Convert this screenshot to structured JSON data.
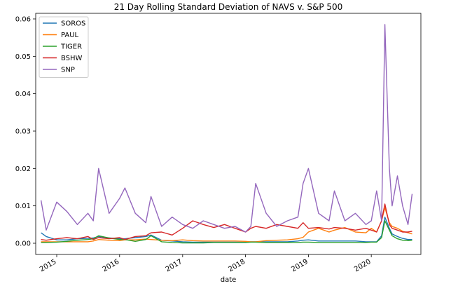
{
  "chart_data": {
    "type": "line",
    "title": "21 Day Rolling Standard Deviation of NAVS v. S&P 500",
    "xlabel": "date",
    "ylabel": "",
    "xlim": [
      "2014-09-01",
      "2020-10-15"
    ],
    "ylim": [
      -0.003,
      0.0615
    ],
    "x_ticks": [
      "2015",
      "2016",
      "2017",
      "2018",
      "2019",
      "2020"
    ],
    "y_ticks": [
      "0.00",
      "0.01",
      "0.02",
      "0.03",
      "0.04",
      "0.05",
      "0.06"
    ],
    "y_tick_values": [
      0,
      0.01,
      0.02,
      0.03,
      0.04,
      0.05,
      0.06
    ],
    "grid": false,
    "legend": {
      "position": "upper-left"
    },
    "x": [
      "2014-10-02",
      "2014-11-01",
      "2015-01-01",
      "2015-03-01",
      "2015-05-01",
      "2015-07-01",
      "2015-08-01",
      "2015-09-01",
      "2015-11-01",
      "2016-01-01",
      "2016-02-01",
      "2016-04-01",
      "2016-06-01",
      "2016-07-01",
      "2016-09-01",
      "2016-11-01",
      "2017-01-01",
      "2017-03-01",
      "2017-05-01",
      "2017-07-01",
      "2017-09-01",
      "2017-11-01",
      "2018-01-01",
      "2018-02-01",
      "2018-03-01",
      "2018-05-01",
      "2018-07-01",
      "2018-09-01",
      "2018-11-01",
      "2018-12-01",
      "2019-01-01",
      "2019-03-01",
      "2019-05-01",
      "2019-06-01",
      "2019-08-01",
      "2019-10-01",
      "2019-12-01",
      "2020-01-01",
      "2020-02-01",
      "2020-03-01",
      "2020-03-20",
      "2020-04-15",
      "2020-05-01",
      "2020-06-01",
      "2020-07-01",
      "2020-08-01",
      "2020-08-25"
    ],
    "series": [
      {
        "name": "SOROS",
        "color": "#1f77b4",
        "values": [
          0.0028,
          0.0018,
          0.0009,
          0.0009,
          0.0012,
          0.0013,
          0.0014,
          0.0018,
          0.0014,
          0.0012,
          0.0012,
          0.0015,
          0.0018,
          0.0022,
          0.0008,
          0.0006,
          0.0004,
          0.0003,
          0.0003,
          0.0003,
          0.0003,
          0.0003,
          0.0003,
          0.0004,
          0.0004,
          0.0004,
          0.0004,
          0.0004,
          0.0006,
          0.0008,
          0.0009,
          0.0006,
          0.0006,
          0.0006,
          0.0006,
          0.0006,
          0.0004,
          0.0004,
          0.0004,
          0.002,
          0.007,
          0.004,
          0.0025,
          0.0018,
          0.0013,
          0.001,
          0.001
        ]
      },
      {
        "name": "PAUL",
        "color": "#ff7f0e",
        "values": [
          0.0004,
          0.0004,
          0.0004,
          0.0004,
          0.0004,
          0.0004,
          0.0006,
          0.001,
          0.0008,
          0.0007,
          0.0009,
          0.0009,
          0.0011,
          0.001,
          0.0008,
          0.0007,
          0.0009,
          0.0007,
          0.0006,
          0.0006,
          0.0006,
          0.0006,
          0.0005,
          0.0004,
          0.0004,
          0.0007,
          0.0008,
          0.0009,
          0.0012,
          0.0016,
          0.003,
          0.004,
          0.003,
          0.0035,
          0.0042,
          0.003,
          0.0028,
          0.004,
          0.003,
          0.006,
          0.0095,
          0.0055,
          0.0045,
          0.004,
          0.0032,
          0.0028,
          0.0025
        ]
      },
      {
        "name": "TIGER",
        "color": "#2ca02c",
        "values": [
          0.0002,
          0.0002,
          0.0003,
          0.0005,
          0.0008,
          0.001,
          0.0012,
          0.002,
          0.0014,
          0.001,
          0.001,
          0.0005,
          0.001,
          0.002,
          0.0004,
          0.0002,
          0.0001,
          0.0001,
          0.0001,
          0.0002,
          0.0002,
          0.0002,
          0.0002,
          0.0003,
          0.0003,
          0.0002,
          0.0002,
          0.0002,
          0.0002,
          0.0003,
          0.0003,
          0.0002,
          0.0002,
          0.0002,
          0.0002,
          0.0002,
          0.0002,
          0.0003,
          0.0003,
          0.0015,
          0.006,
          0.0035,
          0.002,
          0.0012,
          0.0008,
          0.0007,
          0.0008
        ]
      },
      {
        "name": "BSHW",
        "color": "#d62728",
        "values": [
          0.001,
          0.0008,
          0.0012,
          0.0015,
          0.0012,
          0.0018,
          0.001,
          0.0015,
          0.0012,
          0.0015,
          0.001,
          0.0018,
          0.002,
          0.0028,
          0.003,
          0.0022,
          0.004,
          0.006,
          0.005,
          0.0042,
          0.005,
          0.004,
          0.003,
          0.004,
          0.0045,
          0.004,
          0.005,
          0.0045,
          0.004,
          0.0055,
          0.004,
          0.0042,
          0.0038,
          0.0042,
          0.004,
          0.0035,
          0.004,
          0.0035,
          0.003,
          0.006,
          0.0105,
          0.005,
          0.004,
          0.0035,
          0.003,
          0.003,
          0.0032
        ]
      },
      {
        "name": "SNP",
        "color": "#9467bd",
        "values": [
          0.0115,
          0.0035,
          0.011,
          0.0085,
          0.005,
          0.008,
          0.006,
          0.02,
          0.008,
          0.012,
          0.0148,
          0.008,
          0.0055,
          0.0125,
          0.0045,
          0.007,
          0.005,
          0.004,
          0.006,
          0.005,
          0.004,
          0.0045,
          0.003,
          0.0045,
          0.016,
          0.008,
          0.0045,
          0.006,
          0.007,
          0.016,
          0.02,
          0.008,
          0.006,
          0.014,
          0.006,
          0.008,
          0.005,
          0.006,
          0.014,
          0.006,
          0.0585,
          0.02,
          0.01,
          0.018,
          0.01,
          0.005,
          0.0132
        ]
      }
    ]
  }
}
